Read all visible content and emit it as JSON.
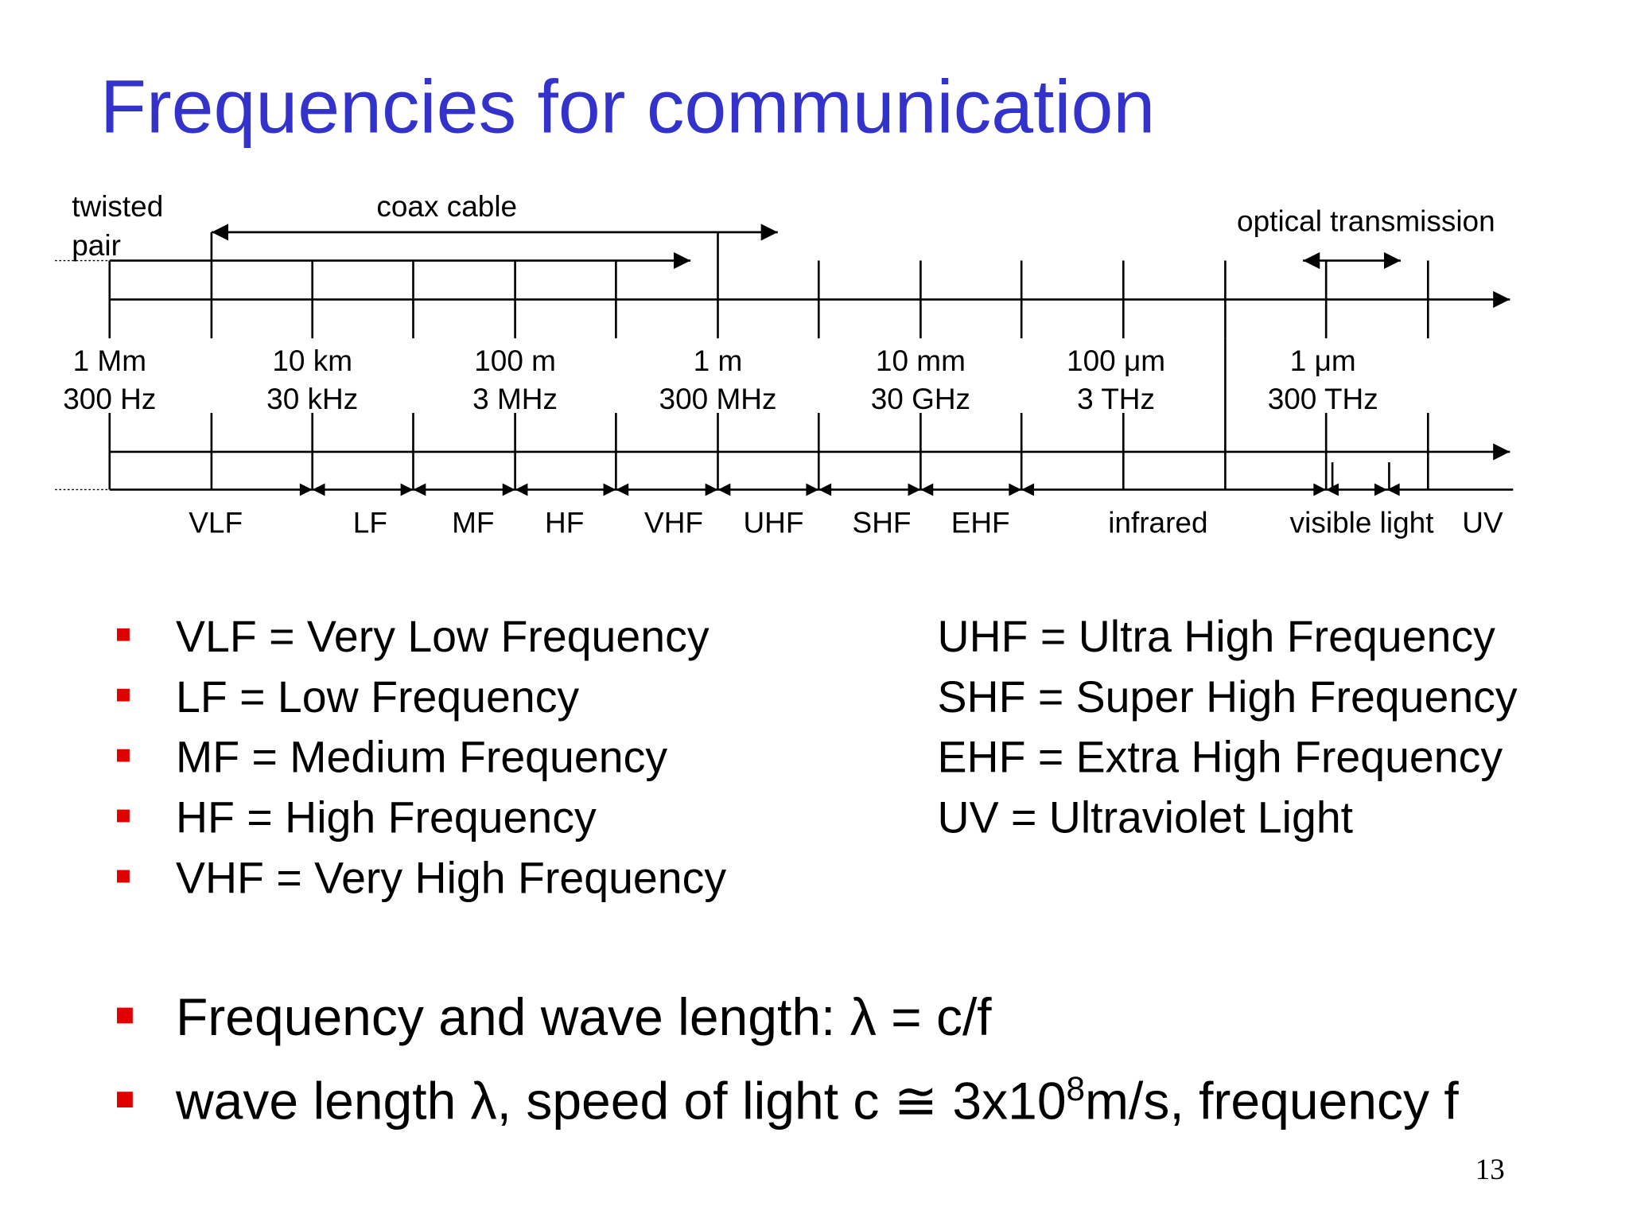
{
  "title": "Frequencies for communication",
  "diagram": {
    "twisted_pair": [
      "twisted",
      "pair"
    ],
    "coax_cable": "coax cable",
    "optical_transmission": "optical transmission",
    "scales": [
      {
        "wavelength": "1 Mm",
        "frequency": "300 Hz"
      },
      {
        "wavelength": "10 km",
        "frequency": "30 kHz"
      },
      {
        "wavelength": "100 m",
        "frequency": "3 MHz"
      },
      {
        "wavelength": "1 m",
        "frequency": "300 MHz"
      },
      {
        "wavelength": "10 mm",
        "frequency": "30 GHz"
      },
      {
        "wavelength": "100 μm",
        "frequency": "3 THz"
      },
      {
        "wavelength": "1 μm",
        "frequency": "300 THz"
      }
    ],
    "bands": [
      "VLF",
      "LF",
      "MF",
      "HF",
      "VHF",
      "UHF",
      "SHF",
      "EHF",
      "infrared",
      "visible light",
      "UV"
    ]
  },
  "definitions": {
    "left": [
      "VLF = Very Low Frequency",
      "LF = Low Frequency",
      "MF = Medium Frequency",
      "HF = High Frequency",
      "VHF = Very High Frequency"
    ],
    "right": [
      "UHF = Ultra High Frequency",
      "SHF = Super High Frequency",
      "EHF = Extra High Frequency",
      "UV = Ultraviolet Light"
    ]
  },
  "bullets": [
    [
      "Frequency and wave length: λ = c/f"
    ],
    [
      "wave length λ, speed of light c ≅ 3x10",
      "8",
      "m/s, frequency f"
    ]
  ],
  "page_number": "13"
}
